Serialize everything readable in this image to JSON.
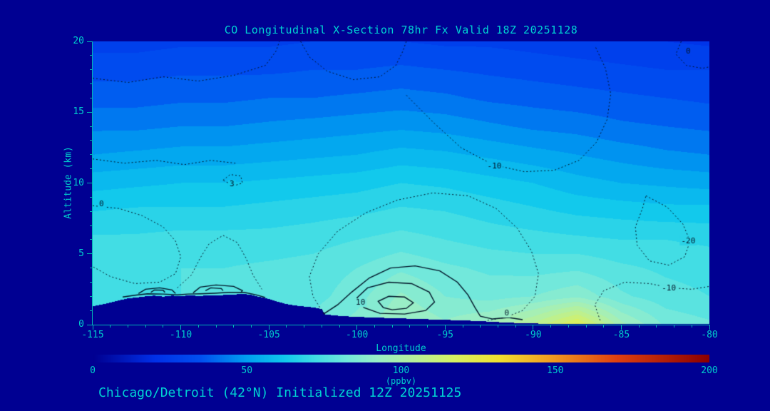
{
  "page": {
    "background": "#000092",
    "accent": "#00CCCC"
  },
  "footer": {
    "caption": "Chicago/Detroit (42°N) Initialized 12Z 20251125"
  },
  "chart_data": {
    "type": "heatmap",
    "subtype": "filled-contour-vertical-cross-section",
    "title": "CO Longitudinal X-Section 78hr  Fx Valid 18Z 20251128",
    "xlabel": "Longitude",
    "ylabel": "Altitude (km)",
    "xlim": [
      -115,
      -80
    ],
    "ylim": [
      0,
      20
    ],
    "x_ticks": [
      -115,
      -110,
      -105,
      -100,
      -95,
      -90,
      -85,
      -80
    ],
    "y_ticks": [
      0,
      5,
      10,
      15,
      20
    ],
    "band_step": 5,
    "colorbar": {
      "label": "(ppbv)",
      "min": 0,
      "max": 200,
      "ticks": [
        0,
        50,
        100,
        150,
        200
      ],
      "stops": [
        [
          0,
          "#000090"
        ],
        [
          20,
          "#0030E8"
        ],
        [
          35,
          "#0050F0"
        ],
        [
          50,
          "#00A0F0"
        ],
        [
          62,
          "#10C8EC"
        ],
        [
          72,
          "#40DCE4"
        ],
        [
          82,
          "#70E8DC"
        ],
        [
          92,
          "#98EEC8"
        ],
        [
          105,
          "#B8F098"
        ],
        [
          118,
          "#D8F060"
        ],
        [
          132,
          "#F0E030"
        ],
        [
          150,
          "#F09820"
        ],
        [
          170,
          "#E04010"
        ],
        [
          200,
          "#8B0000"
        ]
      ]
    },
    "grid": {
      "lons": [
        -115,
        -112.5,
        -110,
        -107.5,
        -105,
        -102.5,
        -100,
        -97.5,
        -95,
        -92.5,
        -90,
        -87.5,
        -85,
        -82.5,
        -80
      ],
      "alts": [
        0,
        2,
        4,
        6,
        8,
        10,
        12,
        14,
        16,
        18,
        20
      ],
      "values": [
        [
          76,
          77,
          78,
          78,
          79,
          82,
          87,
          95,
          91,
          96,
          106,
          122,
          97,
          84,
          81
        ],
        [
          74,
          75,
          75,
          76,
          76,
          78,
          83,
          91,
          85,
          83,
          85,
          89,
          81,
          77,
          75
        ],
        [
          74,
          74,
          75,
          75,
          76,
          77,
          80,
          84,
          81,
          79,
          78,
          79,
          76,
          74,
          73
        ],
        [
          71,
          71,
          72,
          72,
          72,
          73,
          75,
          77,
          75,
          73,
          72,
          71,
          70,
          70,
          69
        ],
        [
          65,
          66,
          66,
          66,
          67,
          68,
          69,
          71,
          70,
          68,
          66,
          64,
          63,
          62,
          62
        ],
        [
          58,
          59,
          60,
          60,
          61,
          62,
          63,
          65,
          64,
          62,
          60,
          57,
          55,
          54,
          53
        ],
        [
          50,
          51,
          52,
          52,
          53,
          54,
          55,
          57,
          56,
          54,
          52,
          50,
          48,
          46,
          45
        ],
        [
          44,
          44,
          45,
          45,
          46,
          47,
          48,
          49,
          48,
          46,
          44,
          43,
          41,
          40,
          39
        ],
        [
          38,
          38,
          39,
          39,
          40,
          40,
          41,
          42,
          41,
          39,
          38,
          37,
          36,
          35,
          34
        ],
        [
          33,
          33,
          34,
          34,
          34,
          35,
          35,
          36,
          35,
          34,
          33,
          32,
          31,
          30,
          30
        ],
        [
          28,
          28,
          29,
          29,
          29,
          30,
          30,
          30,
          29,
          29,
          28,
          27,
          26,
          25,
          24
        ]
      ]
    },
    "terrain": {
      "lons": [
        -115,
        -114.5,
        -114,
        -113.5,
        -113,
        -112.5,
        -112,
        -111.5,
        -111,
        -110.5,
        -110,
        -109.5,
        -109,
        -108.5,
        -108,
        -107.5,
        -107,
        -106.5,
        -106,
        -105.5,
        -105,
        -104.5,
        -104,
        -103.5,
        -103,
        -102.5,
        -102,
        -101.8,
        -101.5,
        -101,
        -100.5,
        -100,
        -99,
        -98,
        -97,
        -96,
        -95,
        -94,
        -93,
        -92,
        -91,
        -90,
        -88,
        -86,
        -84,
        -82,
        -80
      ],
      "heights": [
        1.3,
        1.42,
        1.55,
        1.72,
        1.85,
        1.92,
        2.0,
        2.05,
        1.98,
        2.05,
        2.0,
        2.08,
        2.02,
        2.06,
        2.05,
        2.1,
        2.12,
        2.18,
        2.1,
        1.95,
        1.82,
        1.62,
        1.45,
        1.35,
        1.28,
        1.22,
        1.1,
        0.72,
        0.68,
        0.62,
        0.58,
        0.55,
        0.5,
        0.46,
        0.42,
        0.38,
        0.34,
        0.3,
        0.25,
        0.18,
        0.12,
        0.08,
        0.05,
        0.05,
        0.04,
        0.03,
        0.03
      ]
    },
    "contour_lines": [
      {
        "level": "0",
        "style": "dotted",
        "closed": false,
        "points": [
          [
            -115,
            8.4
          ],
          [
            -113.5,
            8.2
          ],
          [
            -112.2,
            7.7
          ],
          [
            -111.0,
            6.9
          ],
          [
            -110.3,
            5.9
          ],
          [
            -110.0,
            4.8
          ],
          [
            -110.3,
            3.6
          ],
          [
            -111.2,
            3.0
          ],
          [
            -112.6,
            2.9
          ],
          [
            -114.0,
            3.4
          ],
          [
            -115,
            4.1
          ]
        ]
      },
      {
        "level": "0",
        "style": "dotted",
        "closed": false,
        "points": [
          [
            -110.2,
            2.6
          ],
          [
            -109.4,
            3.5
          ],
          [
            -108.9,
            4.7
          ],
          [
            -108.4,
            5.7
          ],
          [
            -107.6,
            6.3
          ],
          [
            -106.8,
            5.8
          ],
          [
            -106.3,
            4.7
          ],
          [
            -105.9,
            3.5
          ],
          [
            -105.4,
            2.5
          ]
        ]
      },
      {
        "level": "0",
        "style": "dotted",
        "closed": false,
        "points": [
          [
            -101.9,
            0.8
          ],
          [
            -102.5,
            2.0
          ],
          [
            -102.7,
            3.4
          ],
          [
            -102.2,
            5.0
          ],
          [
            -101.1,
            6.6
          ],
          [
            -99.5,
            7.9
          ],
          [
            -97.7,
            8.8
          ],
          [
            -95.7,
            9.3
          ],
          [
            -93.7,
            9.1
          ],
          [
            -92.1,
            8.2
          ],
          [
            -90.9,
            6.8
          ],
          [
            -90.1,
            5.2
          ],
          [
            -89.7,
            3.6
          ],
          [
            -89.9,
            2.0
          ],
          [
            -90.6,
            1.0
          ],
          [
            -91.6,
            0.5
          ],
          [
            -92.6,
            0.3
          ]
        ]
      },
      {
        "level": "0",
        "style": "dotted",
        "closed": false,
        "points": [
          [
            -115,
            17.4
          ],
          [
            -113,
            17.1
          ],
          [
            -111,
            17.5
          ],
          [
            -109,
            17.2
          ],
          [
            -107,
            17.6
          ],
          [
            -105.2,
            18.3
          ],
          [
            -104.6,
            19.3
          ],
          [
            -104.4,
            20
          ]
        ]
      },
      {
        "level": "0",
        "style": "dotted",
        "closed": false,
        "points": [
          [
            -103.2,
            20
          ],
          [
            -102.7,
            18.9
          ],
          [
            -101.7,
            17.9
          ],
          [
            -100.2,
            17.3
          ],
          [
            -98.7,
            17.5
          ],
          [
            -97.8,
            18.3
          ],
          [
            -97.4,
            19.3
          ],
          [
            -97.2,
            20
          ]
        ]
      },
      {
        "level": "0",
        "style": "dotted",
        "closed": false,
        "points": [
          [
            -115,
            11.7
          ],
          [
            -113.2,
            11.4
          ],
          [
            -111.4,
            11.6
          ],
          [
            -109.8,
            11.3
          ],
          [
            -108.3,
            11.6
          ],
          [
            -106.9,
            11.4
          ]
        ]
      },
      {
        "level": "-10",
        "style": "dotted",
        "closed": false,
        "points": [
          [
            -97.2,
            16.2
          ],
          [
            -95.6,
            14.2
          ],
          [
            -94.1,
            12.5
          ],
          [
            -92.3,
            11.3
          ],
          [
            -90.5,
            10.8
          ],
          [
            -88.8,
            10.9
          ],
          [
            -87.4,
            11.6
          ],
          [
            -86.4,
            12.9
          ],
          [
            -85.8,
            14.5
          ],
          [
            -85.6,
            16.3
          ],
          [
            -85.9,
            18.1
          ],
          [
            -86.5,
            19.7
          ]
        ]
      },
      {
        "level": "-20",
        "style": "dotted",
        "closed": true,
        "points": [
          [
            -83.6,
            9.1
          ],
          [
            -82.4,
            8.3
          ],
          [
            -81.5,
            7.1
          ],
          [
            -81.1,
            5.9
          ],
          [
            -81.4,
            4.8
          ],
          [
            -82.3,
            4.2
          ],
          [
            -83.4,
            4.5
          ],
          [
            -84.1,
            5.6
          ],
          [
            -84.2,
            6.9
          ],
          [
            -83.8,
            8.2
          ]
        ]
      },
      {
        "level": "-10",
        "style": "dotted",
        "closed": false,
        "points": [
          [
            -86.2,
            0.3
          ],
          [
            -86.5,
            1.4
          ],
          [
            -86.0,
            2.4
          ],
          [
            -84.8,
            3.0
          ],
          [
            -83.4,
            2.9
          ],
          [
            -82.2,
            2.6
          ],
          [
            -81.0,
            2.5
          ],
          [
            -80.0,
            2.7
          ]
        ]
      },
      {
        "level": "0",
        "style": "dotted",
        "closed": false,
        "points": [
          [
            -81.6,
            20
          ],
          [
            -81.9,
            19.1
          ],
          [
            -81.3,
            18.3
          ],
          [
            -80.4,
            18.1
          ],
          [
            -80,
            18.2
          ]
        ]
      },
      {
        "level": "3",
        "style": "dotted",
        "closed": true,
        "points": [
          [
            -107.6,
            10.2
          ],
          [
            -107.2,
            10.6
          ],
          [
            -106.6,
            10.5
          ],
          [
            -106.5,
            10.0
          ],
          [
            -107.0,
            9.8
          ]
        ]
      },
      {
        "level": "0",
        "style": "solid",
        "closed": false,
        "points": [
          [
            -113.3,
            1.95
          ],
          [
            -112.6,
            2.08
          ],
          [
            -111.9,
            2.18
          ],
          [
            -111.0,
            2.16
          ],
          [
            -110.2,
            2.1
          ],
          [
            -109.6,
            2.16
          ],
          [
            -108.9,
            2.18
          ],
          [
            -108.1,
            2.22
          ],
          [
            -107.3,
            2.28
          ],
          [
            -106.4,
            2.28
          ],
          [
            -105.7,
            2.1
          ],
          [
            -105.2,
            1.92
          ]
        ]
      },
      {
        "level": "10",
        "style": "solid",
        "closed": false,
        "points": [
          [
            -101.9,
            0.75
          ],
          [
            -101.1,
            1.4
          ],
          [
            -100.3,
            2.3
          ],
          [
            -99.3,
            3.3
          ],
          [
            -98.1,
            4.0
          ],
          [
            -96.7,
            4.15
          ],
          [
            -95.3,
            3.8
          ],
          [
            -94.3,
            3.0
          ],
          [
            -93.7,
            2.1
          ],
          [
            -93.3,
            1.2
          ],
          [
            -93.0,
            0.6
          ],
          [
            -92.3,
            0.4
          ],
          [
            -91.4,
            0.5
          ],
          [
            -90.6,
            0.35
          ]
        ]
      },
      {
        "level": "20",
        "style": "solid",
        "closed": true,
        "points": [
          [
            -99.6,
            1.2
          ],
          [
            -100.0,
            1.9
          ],
          [
            -99.4,
            2.6
          ],
          [
            -98.2,
            3.0
          ],
          [
            -96.9,
            2.9
          ],
          [
            -95.9,
            2.3
          ],
          [
            -95.6,
            1.6
          ],
          [
            -96.1,
            1.0
          ],
          [
            -97.3,
            0.75
          ],
          [
            -98.7,
            0.8
          ]
        ]
      },
      {
        "level": "30",
        "style": "solid",
        "closed": true,
        "points": [
          [
            -98.5,
            1.2
          ],
          [
            -98.8,
            1.65
          ],
          [
            -98.2,
            2.0
          ],
          [
            -97.3,
            1.95
          ],
          [
            -96.8,
            1.55
          ],
          [
            -97.2,
            1.15
          ],
          [
            -98.0,
            1.05
          ]
        ]
      },
      {
        "level": "10",
        "style": "solid",
        "closed": false,
        "points": [
          [
            -112.4,
            2.2
          ],
          [
            -112.0,
            2.5
          ],
          [
            -111.2,
            2.6
          ],
          [
            -110.5,
            2.45
          ],
          [
            -110.3,
            2.2
          ]
        ]
      },
      {
        "level": "10",
        "style": "solid",
        "closed": false,
        "points": [
          [
            -109.3,
            2.25
          ],
          [
            -108.9,
            2.65
          ],
          [
            -108.0,
            2.8
          ],
          [
            -107.0,
            2.7
          ],
          [
            -106.5,
            2.4
          ],
          [
            -106.6,
            2.25
          ]
        ]
      },
      {
        "level": "20",
        "style": "solid",
        "closed": false,
        "points": [
          [
            -111.7,
            2.28
          ],
          [
            -111.5,
            2.45
          ],
          [
            -111.0,
            2.43
          ],
          [
            -110.9,
            2.28
          ]
        ]
      },
      {
        "level": "20",
        "style": "solid",
        "closed": false,
        "points": [
          [
            -108.6,
            2.4
          ],
          [
            -108.3,
            2.6
          ],
          [
            -107.7,
            2.55
          ],
          [
            -107.6,
            2.4
          ]
        ]
      }
    ],
    "contour_labels": [
      {
        "text": "0",
        "lon": -114.5,
        "alt": 8.5
      },
      {
        "text": "3",
        "lon": -107.1,
        "alt": 9.9
      },
      {
        "text": "-10",
        "lon": -92.2,
        "alt": 11.2
      },
      {
        "text": "0",
        "lon": -81.2,
        "alt": 19.3
      },
      {
        "text": "-20",
        "lon": -81.2,
        "alt": 5.9
      },
      {
        "text": "-10",
        "lon": -82.3,
        "alt": 2.55
      },
      {
        "text": "10",
        "lon": -99.8,
        "alt": 1.55
      },
      {
        "text": "0",
        "lon": -91.5,
        "alt": 0.8
      }
    ]
  }
}
